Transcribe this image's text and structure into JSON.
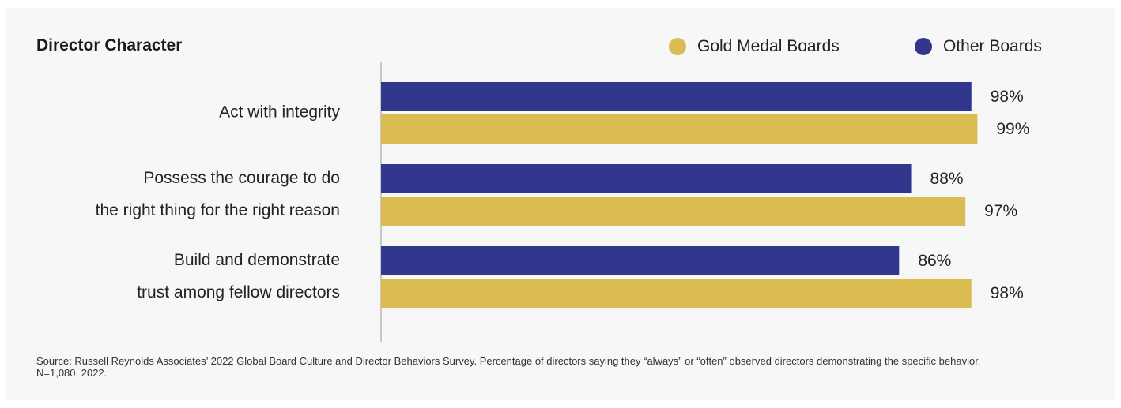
{
  "colors": {
    "background": "#f7f7f7",
    "other_boards": "#32378e",
    "gold_medal_boards": "#dbbc52",
    "axis": "#999999",
    "text": "#222222"
  },
  "chart_data": {
    "type": "bar",
    "orientation": "horizontal",
    "title": "Director Character",
    "categories": [
      [
        "Act with integrity"
      ],
      [
        "Possess the courage to do",
        "the right thing for the right reason"
      ],
      [
        "Build and demonstrate",
        "trust among fellow directors"
      ]
    ],
    "series": [
      {
        "name": "Other Boards",
        "color": "#32378e",
        "values": [
          98,
          88,
          86
        ],
        "labels": [
          "98%",
          "88%",
          "86%"
        ]
      },
      {
        "name": "Gold Medal Boards",
        "color": "#dbbc52",
        "values": [
          99,
          97,
          98
        ],
        "labels": [
          "99%",
          "97%",
          "98%"
        ]
      }
    ],
    "xlim": [
      0,
      100
    ],
    "grid": false,
    "legend_position": "top-right",
    "source": "Source: Russell Reynolds Associates’ 2022 Global Board Culture and Director Behaviors Survey. Percentage of directors saying they “always” or “often” observed directors demonstrating the specific behavior. N=1,080. 2022."
  }
}
